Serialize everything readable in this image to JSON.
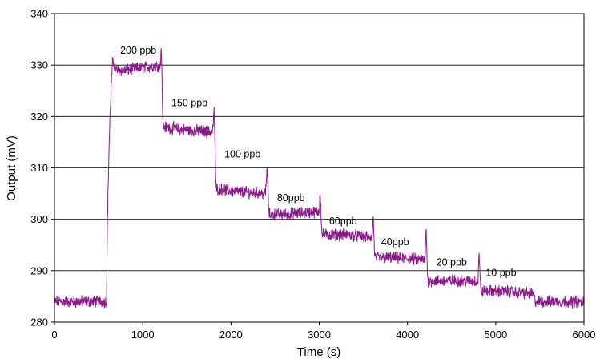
{
  "chart_data": {
    "type": "line",
    "title": "",
    "xlabel": "Time (s)",
    "ylabel": "Output (mV)",
    "xlim": [
      0,
      6000
    ],
    "ylim": [
      280,
      340
    ],
    "xticks": [
      0,
      1000,
      2000,
      3000,
      4000,
      5000,
      6000
    ],
    "yticks": [
      280,
      290,
      300,
      310,
      320,
      330,
      340
    ],
    "grid": "horizontal",
    "legend": "none",
    "series_color": "#8B1A8B",
    "series": [
      {
        "x": [
          0,
          590,
          600,
          620,
          640,
          660,
          700,
          800,
          1000,
          1200,
          1210,
          1230,
          1400,
          1790,
          1810,
          1830,
          2000,
          2390,
          2410,
          2430,
          2600,
          3000,
          3010,
          3030,
          3300,
          3600,
          3610,
          3630,
          3900,
          4200,
          4210,
          4230,
          4500,
          4800,
          4810,
          4830,
          5100,
          5420,
          5450,
          5700,
          6000
        ],
        "y": [
          284,
          284,
          300,
          315,
          325,
          331,
          329,
          329,
          329.5,
          330,
          334,
          318,
          317.5,
          317,
          321,
          306,
          305.5,
          305,
          310,
          301,
          301,
          301.5,
          306,
          297,
          297,
          296.5,
          301,
          292.5,
          292.5,
          292,
          299,
          288,
          288,
          288,
          294,
          286,
          286,
          285.5,
          284,
          284,
          284
        ]
      }
    ],
    "annotations": [
      {
        "text": "200 ppb",
        "x": 950,
        "y": 332.2
      },
      {
        "text": "150 ppb",
        "x": 1530,
        "y": 322
      },
      {
        "text": "100 ppb",
        "x": 2130,
        "y": 312
      },
      {
        "text": "80ppb",
        "x": 2680,
        "y": 303.5
      },
      {
        "text": "60ppb",
        "x": 3270,
        "y": 299
      },
      {
        "text": "40ppb",
        "x": 3860,
        "y": 295
      },
      {
        "text": "20 ppb",
        "x": 4500,
        "y": 291
      },
      {
        "text": "10 ppb",
        "x": 5060,
        "y": 289
      }
    ]
  }
}
